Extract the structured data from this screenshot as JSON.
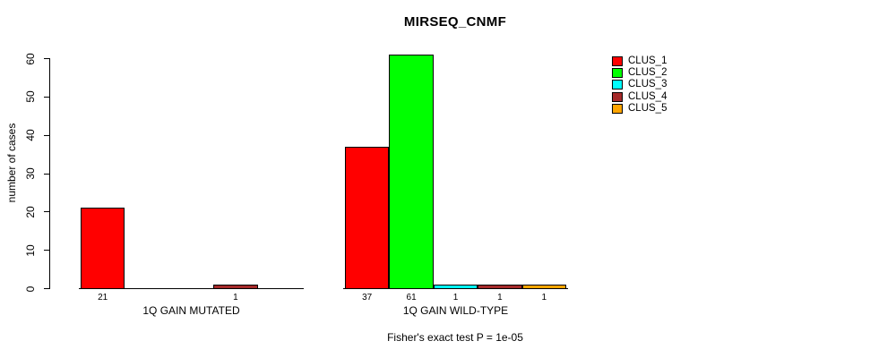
{
  "chart_data": {
    "type": "bar",
    "title": "MIRSEQ_CNMF",
    "ylabel": "number of cases",
    "xlabel": "",
    "footnote": "Fisher's exact test P = 1e-05",
    "ylim": [
      0,
      60
    ],
    "yticks": [
      0,
      10,
      20,
      30,
      40,
      50,
      60
    ],
    "grid": false,
    "value_labels_shown": "nonzero bars only, below baseline",
    "series_names": [
      "CLUS_1",
      "CLUS_2",
      "CLUS_3",
      "CLUS_4",
      "CLUS_5"
    ],
    "series_colors": [
      "#FF0000",
      "#00FF00",
      "#00FFFF",
      "#A52A2A",
      "#FFA500"
    ],
    "groups": [
      {
        "label": "1Q GAIN MUTATED",
        "values": [
          21,
          0,
          0,
          1,
          0
        ]
      },
      {
        "label": "1Q GAIN WILD-TYPE",
        "values": [
          37,
          61,
          1,
          1,
          1
        ]
      }
    ],
    "legend": {
      "position": "top-right",
      "entries": [
        {
          "label": "CLUS_1",
          "color": "#FF0000"
        },
        {
          "label": "CLUS_2",
          "color": "#00FF00"
        },
        {
          "label": "CLUS_3",
          "color": "#00FFFF"
        },
        {
          "label": "CLUS_4",
          "color": "#A52A2A"
        },
        {
          "label": "CLUS_5",
          "color": "#FFA500"
        }
      ]
    }
  },
  "colors": {
    "background": "#FFFFFF",
    "axis": "#000000",
    "text": "#000000"
  }
}
